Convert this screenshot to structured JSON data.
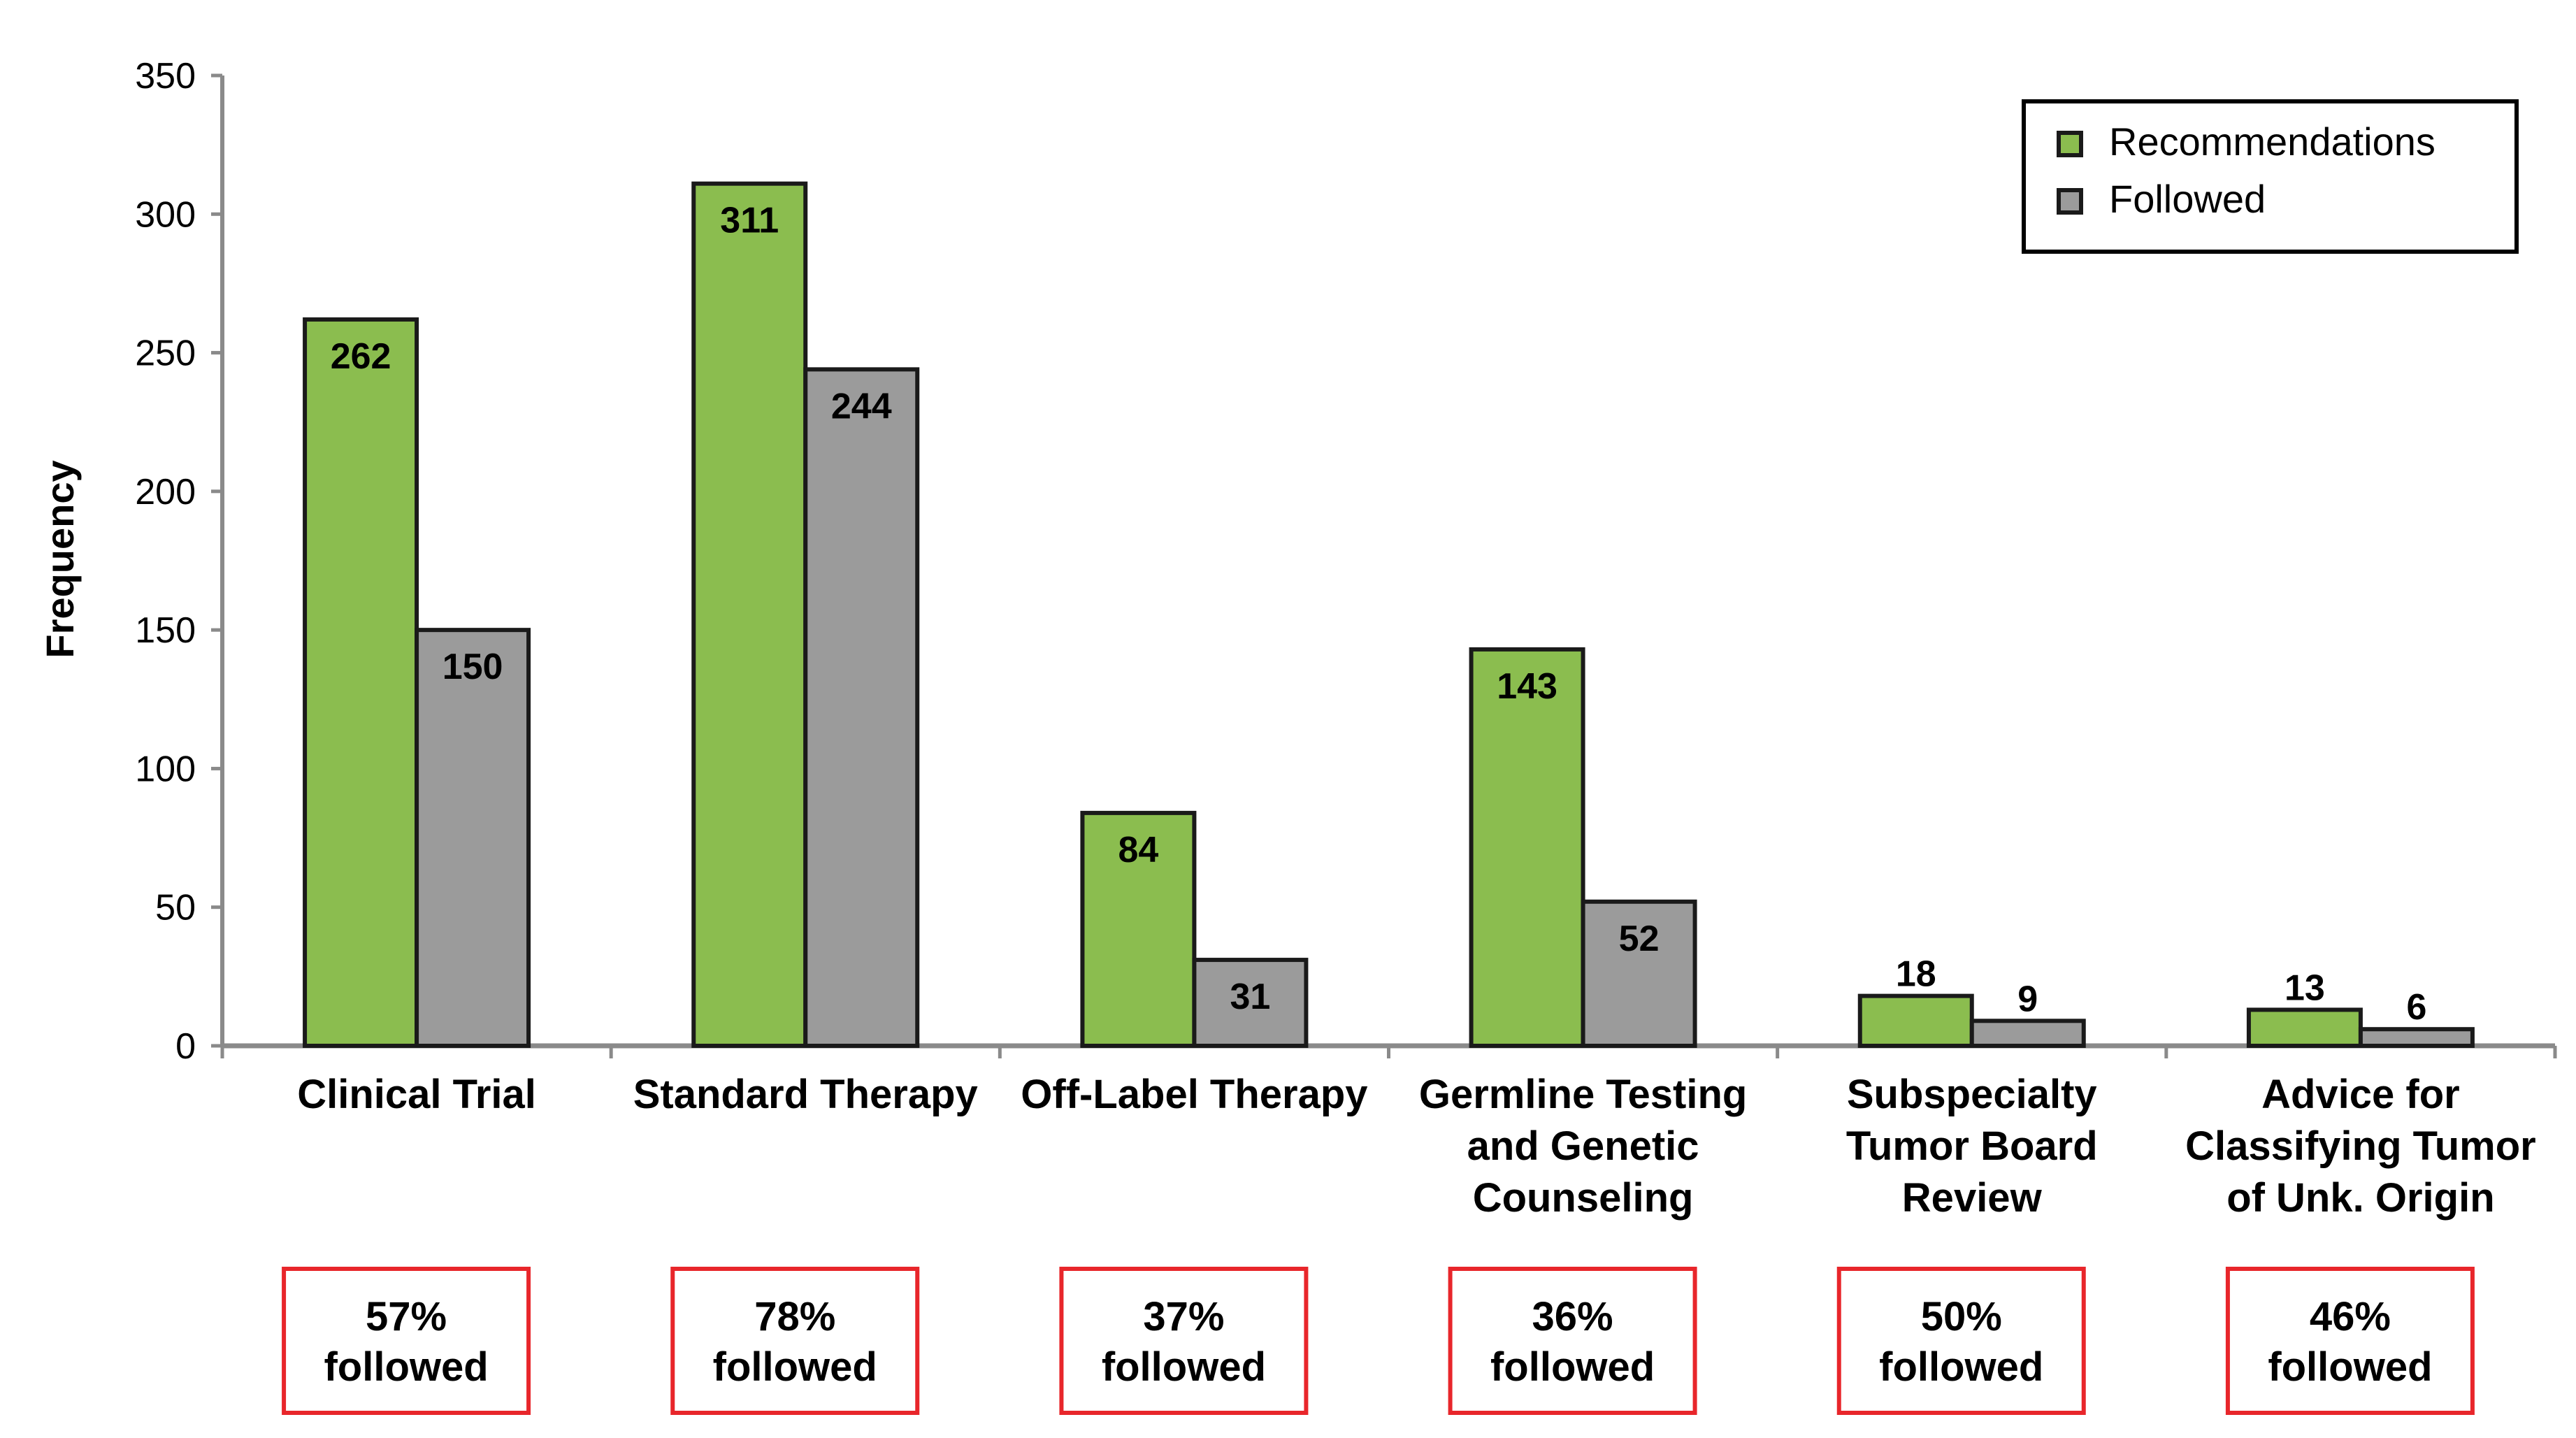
{
  "chart_data": {
    "type": "bar",
    "title": "",
    "xlabel": "",
    "ylabel": "Frequency",
    "ylim": [
      0,
      350
    ],
    "yticks": [
      0,
      50,
      100,
      150,
      200,
      250,
      300,
      350
    ],
    "grid": false,
    "legend_position": "top-right",
    "categories": [
      [
        "Clinical Trial"
      ],
      [
        "Standard Therapy"
      ],
      [
        "Off-Label Therapy"
      ],
      [
        "Germline Testing",
        "and Genetic",
        "Counseling"
      ],
      [
        "Subspecialty",
        "Tumor Board",
        "Review"
      ],
      [
        "Advice for",
        "Classifying Tumor",
        "of Unk. Origin"
      ]
    ],
    "series": [
      {
        "name": "Recommendations",
        "color": "#8BBD4F",
        "values": [
          262,
          311,
          84,
          143,
          18,
          13
        ]
      },
      {
        "name": "Followed",
        "color": "#9B9B9B",
        "values": [
          150,
          244,
          31,
          52,
          9,
          6
        ]
      }
    ],
    "annotations": [
      [
        "57%",
        "followed"
      ],
      [
        "78%",
        "followed"
      ],
      [
        "37%",
        "followed"
      ],
      [
        "36%",
        "followed"
      ],
      [
        "50%",
        "followed"
      ],
      [
        "46%",
        "followed"
      ]
    ],
    "annotation_border_color": "#E8262B",
    "axis_color": "#8A8A8A",
    "bar_outline_color": "#1A1A1A"
  }
}
